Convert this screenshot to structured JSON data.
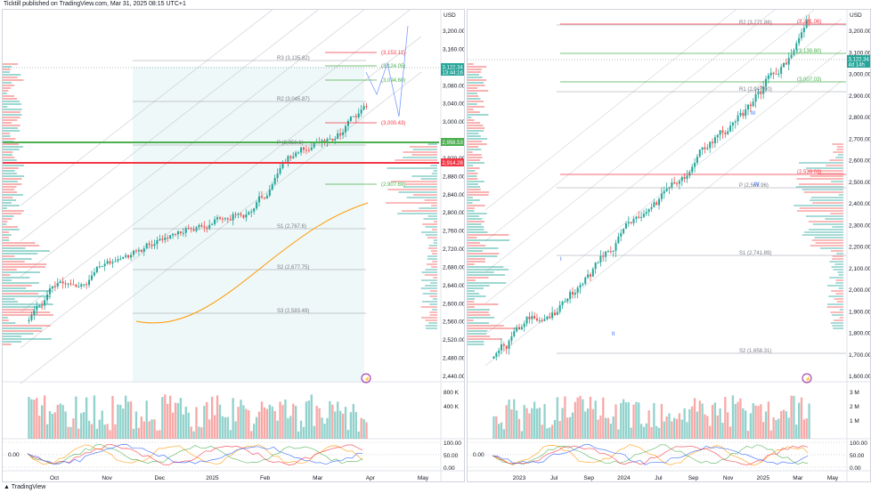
{
  "header": {
    "publisher": "Ticktill published on TradingView.com, Mar 31, 2025 08:15 UTC+1"
  },
  "footer": {
    "brand": "TradingView"
  },
  "colors": {
    "up": "#26a69a",
    "down": "#ef5350",
    "green_line": "#4caf50",
    "red_line": "#f23645",
    "blue": "#2962ff"
  },
  "left": {
    "currency": "USD",
    "price_ticks": [
      "3,200.00",
      "3,160.00",
      "3,120.00",
      "3,080.00",
      "3,040.00",
      "3,000.00",
      "2,960.00",
      "2,920.00",
      "2,880.00",
      "2,840.00",
      "2,800.00",
      "2,760.00",
      "2,720.00",
      "2,680.00",
      "2,640.00",
      "2,600.00",
      "2,560.00",
      "2,520.00",
      "2,480.00",
      "2,440.00"
    ],
    "time_ticks": [
      "Oct",
      "Nov",
      "Dec",
      "2025",
      "Feb",
      "Mar",
      "Apr",
      "May"
    ],
    "current_price": "3,122.34",
    "countdown": "13:44:16",
    "level_green": "2,956.53",
    "level_red": "2,914.28",
    "pivots": [
      "R3 (3,135.82)",
      "R2 (3,045.87)",
      "P (2,956.1)",
      "S1 (2,767.6)",
      "S2 (2,677.75)",
      "S3 (2,583.49)"
    ],
    "targets": [
      "(3,153.11)",
      "(3,124.05)",
      "(3,094.60)",
      "(3,000.43)",
      "(2,907.69)"
    ],
    "volume_ticks": [
      "800 K",
      "400 K"
    ],
    "osc_ticks": [
      "100.00",
      "50.00",
      "0.00"
    ],
    "osc_left": "0.00"
  },
  "right": {
    "currency": "USD",
    "price_ticks": [
      "3,200.00",
      "3,100.00",
      "3,000.00",
      "2,900.00",
      "2,800.00",
      "2,700.00",
      "2,600.00",
      "2,500.00",
      "2,400.00",
      "2,300.00",
      "2,200.00",
      "2,100.00",
      "2,000.00",
      "1,900.00",
      "1,800.00",
      "1,700.00",
      "1,600.00"
    ],
    "time_ticks": [
      "2023",
      "Jul",
      "Sep",
      "2024",
      "Jul",
      "Sep",
      "Nov",
      "2025",
      "Mar",
      "May"
    ],
    "current_price": "3,122.34",
    "countdown": "4d 14h",
    "pivots": [
      "R2 (3,271.86)",
      "R1 (2,947.90)",
      "P (2,565.96)",
      "S1 (2,741.89)",
      "S2 (1,658.31)"
    ],
    "targets": [
      "(3,281.06)",
      "(3,139.80)",
      "(3,007.03)",
      "(2,539.03)"
    ],
    "waves": [
      "I",
      "II",
      "III",
      "IV"
    ],
    "volume_ticks": [
      "3 M",
      "2 M",
      "1 M"
    ],
    "osc_ticks": [
      "100.00",
      "50.00",
      "0.00"
    ],
    "osc_left": "0.00"
  }
}
